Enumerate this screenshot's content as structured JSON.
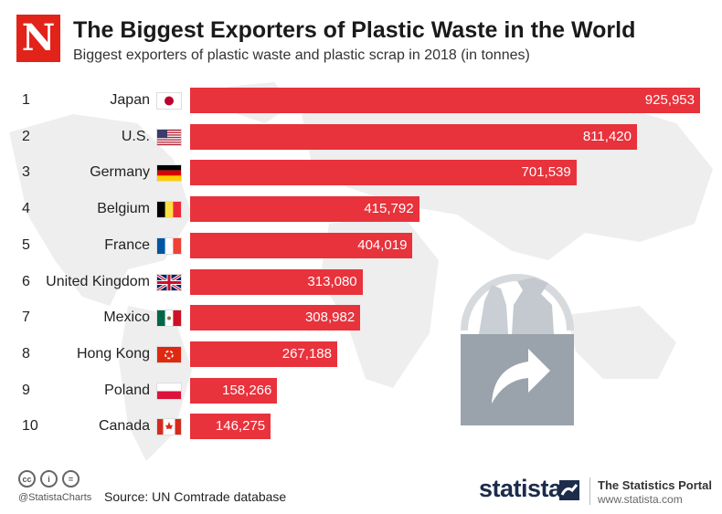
{
  "header": {
    "logo_letter": "N",
    "title": "The Biggest Exporters of Plastic Waste in the World",
    "subtitle": "Biggest exporters of plastic waste and plastic scrap in 2018 (in tonnes)"
  },
  "chart_data": {
    "type": "bar",
    "orientation": "horizontal",
    "title": "The Biggest Exporters of Plastic Waste in the World",
    "subtitle": "Biggest exporters of plastic waste and plastic scrap in 2018 (in tonnes)",
    "ranks": [
      "1",
      "2",
      "3",
      "4",
      "5",
      "6",
      "7",
      "8",
      "9",
      "10"
    ],
    "categories": [
      "Japan",
      "U.S.",
      "Germany",
      "Belgium",
      "France",
      "United Kingdom",
      "Mexico",
      "Hong Kong",
      "Poland",
      "Canada"
    ],
    "values": [
      925953,
      811420,
      701539,
      415792,
      404019,
      313080,
      308982,
      267188,
      158266,
      146275
    ],
    "value_labels": [
      "925,953",
      "811,420",
      "701,539",
      "415,792",
      "404,019",
      "313,080",
      "308,982",
      "267,188",
      "158,266",
      "146,275"
    ],
    "flags": [
      "japan-flag",
      "us-flag",
      "germany-flag",
      "belgium-flag",
      "france-flag",
      "uk-flag",
      "mexico-flag",
      "hong-kong-flag",
      "poland-flag",
      "canada-flag"
    ],
    "bar_color": "#e8323c",
    "xlim": [
      0,
      925953
    ],
    "grid": false,
    "legend": "none"
  },
  "footer": {
    "handle": "@StatistaCharts",
    "source": "Source: UN Comtrade database",
    "brand": "statista",
    "portal_title": "The Statistics Portal",
    "portal_url": "www.statista.com"
  },
  "colors": {
    "accent": "#e2231a",
    "brand_navy": "#1c2c4a",
    "map": "#ececec",
    "icon_gray": "#9aa3ab"
  }
}
